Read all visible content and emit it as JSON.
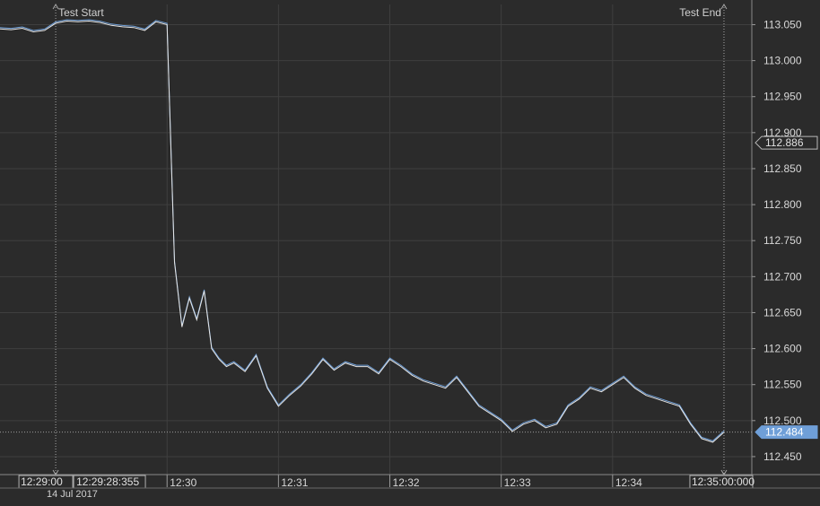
{
  "chart_data": {
    "type": "line",
    "title": "",
    "xlabel": "",
    "ylabel": "",
    "date_label": "14 Jul 2017",
    "ylim": [
      112.425,
      113.078
    ],
    "xlim_minutes": [
      "12:28:30",
      "12:35:15"
    ],
    "y_ticks": [
      "113.050",
      "113.000",
      "112.950",
      "112.900",
      "112.850",
      "112.800",
      "112.750",
      "112.700",
      "112.650",
      "112.600",
      "112.550",
      "112.500",
      "112.450"
    ],
    "x_ticks": [
      {
        "label": "12:30",
        "t": "12:30:00"
      },
      {
        "label": "12:31",
        "t": "12:31:00"
      },
      {
        "label": "12:32",
        "t": "12:32:00"
      },
      {
        "label": "12:33",
        "t": "12:33:00"
      },
      {
        "label": "12:34",
        "t": "12:34:00"
      }
    ],
    "markers": [
      {
        "label": "Test Start",
        "t": "12:29:00",
        "time_label": "12:29:00"
      },
      {
        "label": "Test End",
        "t": "12:35:00",
        "time_label": "12:35:00:000"
      }
    ],
    "cursor_time_label": "12:29:28:355",
    "price_labels": [
      {
        "value": "112.886",
        "style": "outline"
      },
      {
        "value": "112.484",
        "style": "filled"
      }
    ],
    "grid": true,
    "colors": {
      "background": "#2b2b2b",
      "grid": "#3f3f3f",
      "bid_line": "#e6e6e6",
      "ask_line": "#6f9fd8",
      "label_fill": "#6f9fd8"
    },
    "series": [
      {
        "x": [
          "12:28:30",
          "12:28:36",
          "12:28:42",
          "12:28:48",
          "12:28:54",
          "12:29:00",
          "12:29:06",
          "12:29:12",
          "12:29:18",
          "12:29:24",
          "12:29:30",
          "12:29:36",
          "12:29:42",
          "12:29:48",
          "12:29:54",
          "12:30:00",
          "12:30:04",
          "12:30:08",
          "12:30:12",
          "12:30:16",
          "12:30:20",
          "12:30:24",
          "12:30:28",
          "12:30:32",
          "12:30:36",
          "12:30:42",
          "12:30:48",
          "12:30:54",
          "12:31:00",
          "12:31:06",
          "12:31:12",
          "12:31:18",
          "12:31:24",
          "12:31:30",
          "12:31:36",
          "12:31:42",
          "12:31:48",
          "12:31:54",
          "12:32:00",
          "12:32:06",
          "12:32:12",
          "12:32:18",
          "12:32:24",
          "12:32:30",
          "12:32:36",
          "12:32:42",
          "12:32:48",
          "12:32:54",
          "12:33:00",
          "12:33:06",
          "12:33:12",
          "12:33:18",
          "12:33:24",
          "12:33:30",
          "12:33:36",
          "12:33:42",
          "12:33:48",
          "12:33:54",
          "12:34:00",
          "12:34:06",
          "12:34:12",
          "12:34:18",
          "12:34:24",
          "12:34:30",
          "12:34:36",
          "12:34:42",
          "12:34:48",
          "12:34:54",
          "12:35:00"
        ],
        "y": [
          113.044,
          113.043,
          113.045,
          113.04,
          113.042,
          113.052,
          113.055,
          113.054,
          113.055,
          113.053,
          113.049,
          113.047,
          113.046,
          113.042,
          113.054,
          113.05,
          112.72,
          112.63,
          112.67,
          112.64,
          112.68,
          112.6,
          112.585,
          112.575,
          112.58,
          112.568,
          112.59,
          112.545,
          112.52,
          112.535,
          112.548,
          112.565,
          112.585,
          112.57,
          112.58,
          112.575,
          112.575,
          112.565,
          112.585,
          112.575,
          112.563,
          112.555,
          112.55,
          112.545,
          112.56,
          112.54,
          112.52,
          112.51,
          112.5,
          112.485,
          112.495,
          112.5,
          112.49,
          112.495,
          112.52,
          112.53,
          112.545,
          112.54,
          112.55,
          112.56,
          112.545,
          112.535,
          112.53,
          112.525,
          112.52,
          112.495,
          112.475,
          112.47,
          112.484
        ]
      }
    ]
  }
}
